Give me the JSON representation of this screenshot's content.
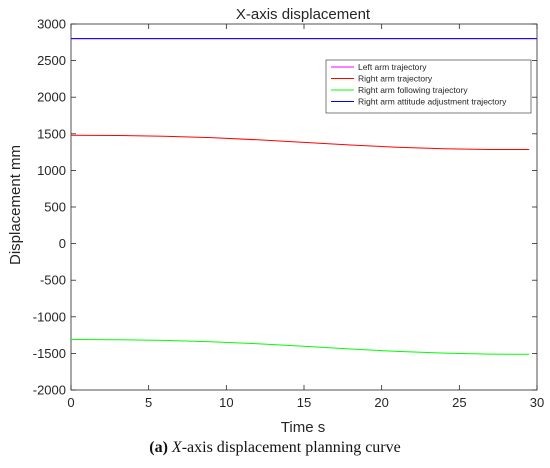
{
  "chart_data": {
    "type": "line",
    "title": "X-axis displacement",
    "xlabel": "Time  s",
    "ylabel": "Displacement  mm",
    "xlim": [
      0,
      30
    ],
    "ylim": [
      -2000,
      3000
    ],
    "xticks": [
      0,
      5,
      10,
      15,
      20,
      25,
      30
    ],
    "yticks": [
      -2000,
      -1500,
      -1000,
      -500,
      0,
      500,
      1000,
      1500,
      2000,
      2500,
      3000
    ],
    "grid": false,
    "legend_position": "top-right",
    "series": [
      {
        "name": "Left arm trajectory",
        "color": "#ff00ff",
        "x": [
          0,
          30
        ],
        "y": [
          2800,
          2800
        ]
      },
      {
        "name": "Right arm trajectory",
        "color": "#ff0000",
        "x": [
          0,
          3,
          6,
          9,
          12,
          15,
          18,
          21,
          24,
          27,
          29.5
        ],
        "y": [
          1480,
          1477,
          1467,
          1448,
          1418,
          1383,
          1347,
          1316,
          1296,
          1286,
          1285
        ]
      },
      {
        "name": "Right arm following trajectory",
        "color": "#00ff00",
        "x": [
          0,
          3,
          6,
          9,
          12,
          15,
          18,
          21,
          24,
          27,
          29.5
        ],
        "y": [
          -1310,
          -1313,
          -1322,
          -1340,
          -1368,
          -1403,
          -1440,
          -1473,
          -1497,
          -1510,
          -1512
        ]
      },
      {
        "name": "Right arm attitude adjustment trajectory",
        "color": "#0000ff",
        "x": [
          0,
          30
        ],
        "y": [
          2800,
          2800
        ]
      }
    ]
  },
  "caption": {
    "label": "(a)",
    "axis_letter": "X",
    "text": "-axis displacement planning curve"
  }
}
